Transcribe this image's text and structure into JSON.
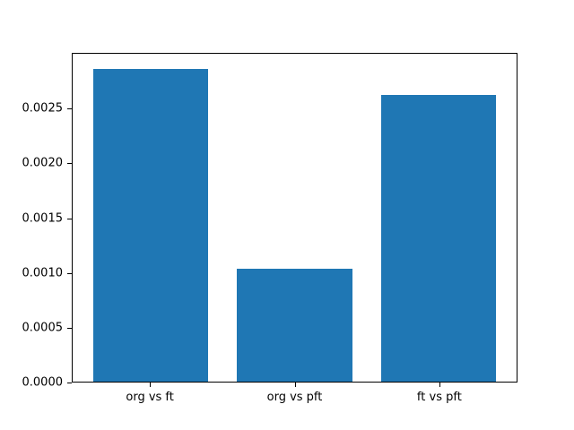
{
  "chart_data": {
    "type": "bar",
    "title": "",
    "xlabel": "",
    "ylabel": "",
    "categories": [
      "org vs ft",
      "org vs pft",
      "ft vs pft"
    ],
    "values": [
      0.00287,
      0.00104,
      0.00263
    ],
    "ylim": [
      0,
      0.00301
    ],
    "yticks": [
      0.0,
      0.0005,
      0.001,
      0.0015,
      0.002,
      0.0025
    ],
    "ytick_labels": [
      "0.0000",
      "0.0005",
      "0.0010",
      "0.0015",
      "0.0020",
      "0.0025"
    ],
    "bar_color": "#1f77b4",
    "spine_color": "#000000",
    "background_color": "#ffffff",
    "grid": false,
    "legend_position": "none",
    "bar_width_fraction": 0.8
  }
}
